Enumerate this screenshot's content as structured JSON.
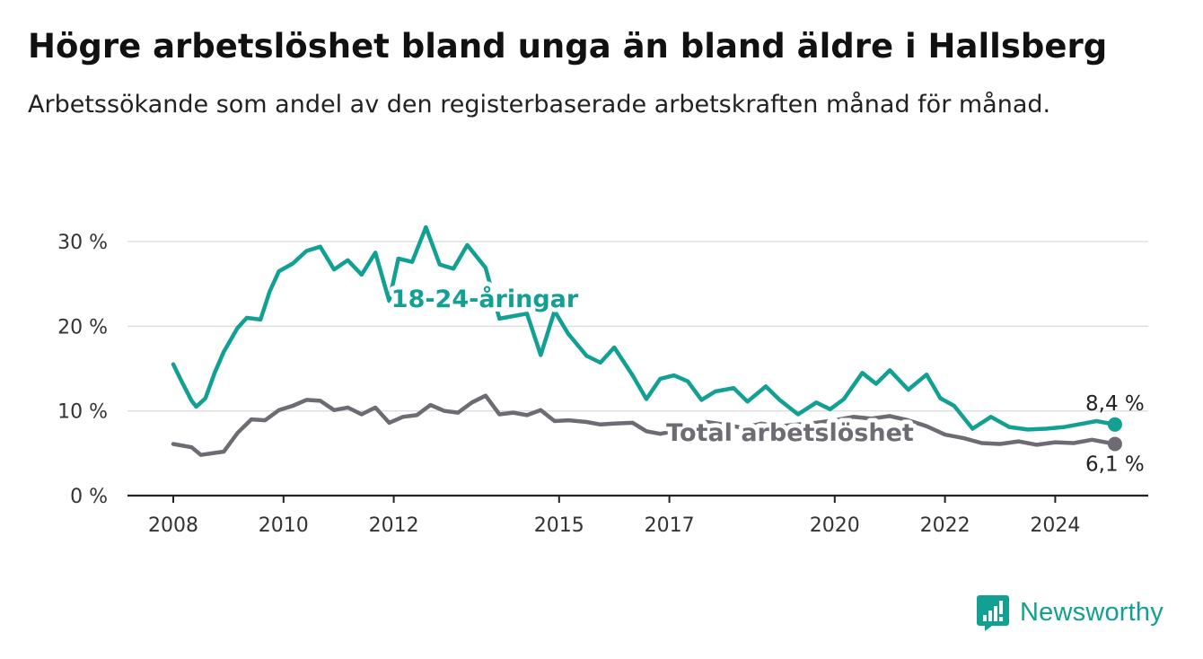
{
  "title": "Högre arbetslöshet bland unga än bland äldre i Hallsberg",
  "subtitle": "Arbetssökande som andel av den registerbaserade arbetskraften månad för månad.",
  "brand": {
    "name": "Newsworthy",
    "icon": "newsworthy-logo-icon",
    "color": "#11a092"
  },
  "chart_data": {
    "type": "line",
    "x_ticks": [
      "2008",
      "2010",
      "2012",
      "2015",
      "2017",
      "2020",
      "2022",
      "2024"
    ],
    "y_ticks": [
      "0 %",
      "10 %",
      "20 %",
      "30 %"
    ],
    "ylim": [
      0,
      32
    ],
    "grid": true,
    "series": [
      {
        "name": "18-24-åringar",
        "color": "#11a092",
        "end_label": "8,4 %",
        "points": [
          [
            "2008-01",
            15.5
          ],
          [
            "2008-03",
            13.3
          ],
          [
            "2008-05",
            11.2
          ],
          [
            "2008-06",
            10.5
          ],
          [
            "2008-08",
            11.5
          ],
          [
            "2008-10",
            14.5
          ],
          [
            "2008-12",
            17.0
          ],
          [
            "2009-03",
            19.8
          ],
          [
            "2009-05",
            21.0
          ],
          [
            "2009-08",
            20.8
          ],
          [
            "2009-10",
            24.1
          ],
          [
            "2009-12",
            26.5
          ],
          [
            "2010-03",
            27.4
          ],
          [
            "2010-06",
            28.9
          ],
          [
            "2010-09",
            29.4
          ],
          [
            "2010-12",
            26.7
          ],
          [
            "2011-03",
            27.8
          ],
          [
            "2011-06",
            26.1
          ],
          [
            "2011-09",
            28.7
          ],
          [
            "2011-12",
            23.0
          ],
          [
            "2012-02",
            28.0
          ],
          [
            "2012-05",
            27.6
          ],
          [
            "2012-08",
            31.7
          ],
          [
            "2012-11",
            27.3
          ],
          [
            "2013-02",
            26.8
          ],
          [
            "2013-05",
            29.6
          ],
          [
            "2013-09",
            26.9
          ],
          [
            "2013-12",
            20.9
          ],
          [
            "2014-06",
            21.5
          ],
          [
            "2014-09",
            16.6
          ],
          [
            "2014-12",
            21.8
          ],
          [
            "2015-03",
            19.1
          ],
          [
            "2015-07",
            16.5
          ],
          [
            "2015-10",
            15.7
          ],
          [
            "2016-01",
            17.5
          ],
          [
            "2016-05",
            14.2
          ],
          [
            "2016-08",
            11.4
          ],
          [
            "2016-11",
            13.8
          ],
          [
            "2017-02",
            14.2
          ],
          [
            "2017-05",
            13.5
          ],
          [
            "2017-08",
            11.3
          ],
          [
            "2017-11",
            12.3
          ],
          [
            "2018-03",
            12.7
          ],
          [
            "2018-06",
            11.1
          ],
          [
            "2018-10",
            12.9
          ],
          [
            "2019-01",
            11.3
          ],
          [
            "2019-05",
            9.6
          ],
          [
            "2019-09",
            11.0
          ],
          [
            "2019-12",
            10.2
          ],
          [
            "2020-03",
            11.4
          ],
          [
            "2020-07",
            14.5
          ],
          [
            "2020-10",
            13.2
          ],
          [
            "2021-01",
            14.8
          ],
          [
            "2021-05",
            12.5
          ],
          [
            "2021-09",
            14.3
          ],
          [
            "2021-12",
            11.5
          ],
          [
            "2022-03",
            10.6
          ],
          [
            "2022-07",
            7.9
          ],
          [
            "2022-11",
            9.3
          ],
          [
            "2023-03",
            8.1
          ],
          [
            "2023-07",
            7.8
          ],
          [
            "2023-11",
            7.9
          ],
          [
            "2024-03",
            8.1
          ],
          [
            "2024-07",
            8.5
          ],
          [
            "2024-10",
            8.8
          ],
          [
            "2025-02",
            8.4
          ]
        ]
      },
      {
        "name": "Total arbetslöshet",
        "color": "#6f6b73",
        "end_label": "6,1 %",
        "points": [
          [
            "2008-01",
            6.1
          ],
          [
            "2008-05",
            5.7
          ],
          [
            "2008-07",
            4.8
          ],
          [
            "2008-12",
            5.2
          ],
          [
            "2009-03",
            7.4
          ],
          [
            "2009-06",
            9.0
          ],
          [
            "2009-09",
            8.9
          ],
          [
            "2009-12",
            10.1
          ],
          [
            "2010-03",
            10.6
          ],
          [
            "2010-06",
            11.3
          ],
          [
            "2010-09",
            11.2
          ],
          [
            "2010-12",
            10.1
          ],
          [
            "2011-03",
            10.4
          ],
          [
            "2011-06",
            9.6
          ],
          [
            "2011-09",
            10.4
          ],
          [
            "2011-12",
            8.6
          ],
          [
            "2012-03",
            9.3
          ],
          [
            "2012-06",
            9.5
          ],
          [
            "2012-09",
            10.7
          ],
          [
            "2012-12",
            10.0
          ],
          [
            "2013-03",
            9.8
          ],
          [
            "2013-06",
            11.0
          ],
          [
            "2013-09",
            11.8
          ],
          [
            "2013-12",
            9.6
          ],
          [
            "2014-03",
            9.8
          ],
          [
            "2014-06",
            9.5
          ],
          [
            "2014-09",
            10.1
          ],
          [
            "2014-12",
            8.8
          ],
          [
            "2015-03",
            8.9
          ],
          [
            "2015-07",
            8.7
          ],
          [
            "2015-10",
            8.4
          ],
          [
            "2016-01",
            8.5
          ],
          [
            "2016-05",
            8.6
          ],
          [
            "2016-08",
            7.6
          ],
          [
            "2016-11",
            7.3
          ],
          [
            "2017-02",
            7.6
          ],
          [
            "2017-05",
            7.9
          ],
          [
            "2017-09",
            8.7
          ],
          [
            "2018-01",
            8.4
          ],
          [
            "2018-05",
            8.0
          ],
          [
            "2018-09",
            8.5
          ],
          [
            "2019-01",
            8.2
          ],
          [
            "2019-05",
            8.4
          ],
          [
            "2019-09",
            8.6
          ],
          [
            "2020-01",
            8.9
          ],
          [
            "2020-05",
            9.3
          ],
          [
            "2020-09",
            9.1
          ],
          [
            "2021-01",
            9.4
          ],
          [
            "2021-05",
            8.9
          ],
          [
            "2021-09",
            8.2
          ],
          [
            "2022-01",
            7.2
          ],
          [
            "2022-05",
            6.8
          ],
          [
            "2022-09",
            6.2
          ],
          [
            "2023-01",
            6.1
          ],
          [
            "2023-05",
            6.4
          ],
          [
            "2023-09",
            6.0
          ],
          [
            "2024-01",
            6.3
          ],
          [
            "2024-05",
            6.2
          ],
          [
            "2024-09",
            6.6
          ],
          [
            "2025-02",
            6.1
          ]
        ]
      }
    ]
  }
}
